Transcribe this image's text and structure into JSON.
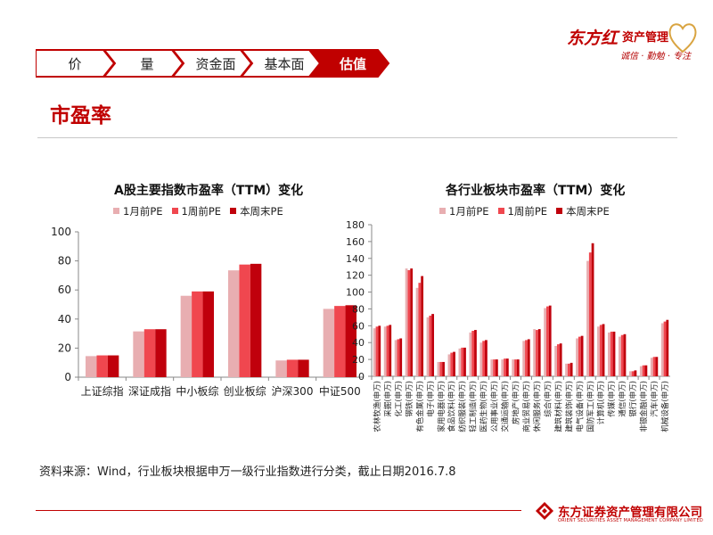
{
  "brand": {
    "name": "东方红",
    "subtitle": "资产管理",
    "slogan": "诚信 · 勤勉 · 专注",
    "footer_cn": "东方证券资产管理有限公司",
    "footer_en": "ORIENT SECURITIES ASSET MANAGEMENT COMPANY LIMITED"
  },
  "nav": {
    "tabs": [
      {
        "label": "价",
        "active": false
      },
      {
        "label": "量",
        "active": false
      },
      {
        "label": "资金面",
        "active": false
      },
      {
        "label": "基本面",
        "active": false
      },
      {
        "label": "估值",
        "active": true
      }
    ]
  },
  "page_title": "市盈率",
  "colors": {
    "accent": "#c00000",
    "series": [
      "#e8aeb1",
      "#f0474f",
      "#c0000c"
    ],
    "tab_fill": "#ffffff",
    "tab_active_fill": "#c00000"
  },
  "chart_data": [
    {
      "type": "bar",
      "title": "A股主要指数市盈率（TTM）变化",
      "categories": [
        "上证综指",
        "深证成指",
        "中小板综",
        "创业板综",
        "沪深300",
        "中证500"
      ],
      "series": [
        {
          "name": "1月前PE",
          "values": [
            14.5,
            31.5,
            56,
            73.5,
            11.5,
            47
          ]
        },
        {
          "name": "1周前PE",
          "values": [
            15,
            33,
            59,
            77.5,
            12,
            49
          ]
        },
        {
          "name": "本周末PE",
          "values": [
            15,
            33,
            59,
            78,
            12,
            49.5
          ]
        }
      ],
      "xlabel": "",
      "ylabel": "",
      "ylim": [
        0,
        100
      ],
      "yticks": [
        0,
        20,
        40,
        60,
        80,
        100
      ],
      "legend": "top"
    },
    {
      "type": "bar",
      "title": "各行业板块市盈率（TTM）变化",
      "categories": [
        "农林牧渔(申万)",
        "采掘(申万)",
        "化工(申万)",
        "钢铁(申万)",
        "有色金属(申万)",
        "电子(申万)",
        "家用电器(申万)",
        "食品饮料(申万)",
        "纺织服装(申万)",
        "轻工制造(申万)",
        "医药生物(申万)",
        "公用事业(申万)",
        "交通运输(申万)",
        "房地产(申万)",
        "商业贸易(申万)",
        "休闲服务(申万)",
        "综合(申万)",
        "建筑材料(申万)",
        "建筑装饰(申万)",
        "电气设备(申万)",
        "国防军工(申万)",
        "计算机(申万)",
        "传媒(申万)",
        "通信(申万)",
        "银行(申万)",
        "非银金融(申万)",
        "汽车(申万)",
        "机械设备(申万)"
      ],
      "series": [
        {
          "name": "1月前PE",
          "values": [
            57,
            59,
            43,
            128,
            105,
            70,
            17,
            26,
            33,
            52,
            40,
            20,
            20,
            20,
            42,
            56,
            81,
            36,
            15,
            45,
            137,
            59,
            52,
            47,
            6,
            12,
            22,
            63
          ]
        },
        {
          "name": "1周前PE",
          "values": [
            59,
            60,
            44,
            126,
            111,
            72,
            17,
            28,
            34,
            54,
            42,
            20,
            21,
            20,
            43,
            55,
            83,
            38,
            15,
            47,
            147,
            61,
            53,
            49,
            6,
            13,
            23,
            65
          ]
        },
        {
          "name": "本周末PE",
          "values": [
            60,
            61,
            45,
            128,
            119,
            74,
            17,
            29,
            34,
            55,
            43,
            20,
            21,
            20,
            44,
            56,
            84,
            39,
            16,
            48,
            158,
            62,
            53,
            50,
            7,
            13,
            23,
            67
          ]
        }
      ],
      "xlabel": "",
      "ylabel": "",
      "ylim": [
        0,
        180
      ],
      "yticks": [
        0,
        20,
        40,
        60,
        80,
        100,
        120,
        140,
        160,
        180
      ],
      "legend": "top"
    }
  ],
  "source_note": "资料来源：Wind，行业板块根据申万一级行业指数进行分类，截止日期2016.7.8"
}
